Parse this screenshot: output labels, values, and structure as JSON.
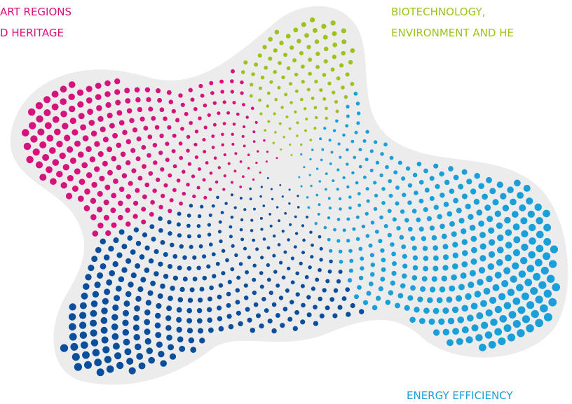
{
  "labels": {
    "smart_regions": [
      "ART REGIONS",
      "D HERITAGE"
    ],
    "biotechnology": [
      "BIOTECHNOLOGY,",
      "ENVIRONMENT AND HE"
    ],
    "energy": "ENERGY EFFICIENCY"
  }
}
